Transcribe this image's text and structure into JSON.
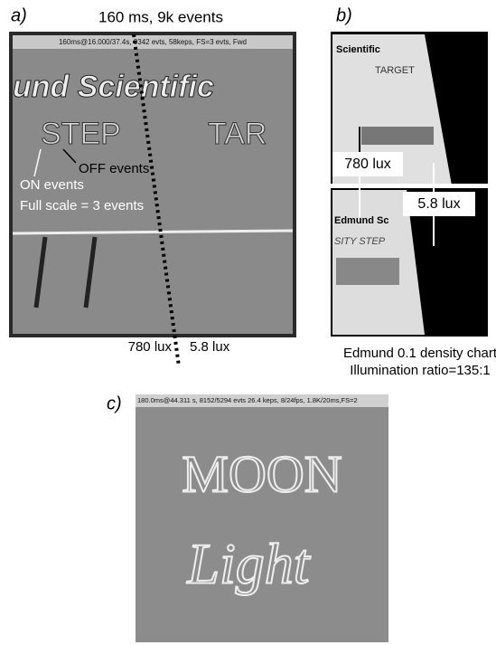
{
  "panel_a": {
    "label": "a)",
    "caption": "160 ms, 9k events",
    "status_bar": "160ms@16.000/37.4s, 9342 evts, 58keps, FS=3 evts, Fwd",
    "image_text": [
      "und Scientific",
      "STEP",
      "TAR"
    ],
    "annotations": [
      "ON events",
      "OFF events",
      "Full scale = 3 events"
    ],
    "lux_left": "780 lux",
    "lux_right": "5.8 lux"
  },
  "panel_b": {
    "label": "b)",
    "image_text": [
      "Scientific",
      "TARGET",
      "Edmund Sc",
      "SITY STEP"
    ],
    "lux_left": "780 lux",
    "lux_right": "5.8 lux",
    "caption": [
      "Edmund 0.1 density chart",
      "Illumination ratio=135:1"
    ]
  },
  "panel_c": {
    "label": "c)",
    "status_bar": "180.0ms@44.311 s, 8152/5294 evts 26.4 keps, 8/24fps, 1.8K/20ms,FS=2",
    "image_text": [
      "MOON",
      "Light"
    ]
  }
}
